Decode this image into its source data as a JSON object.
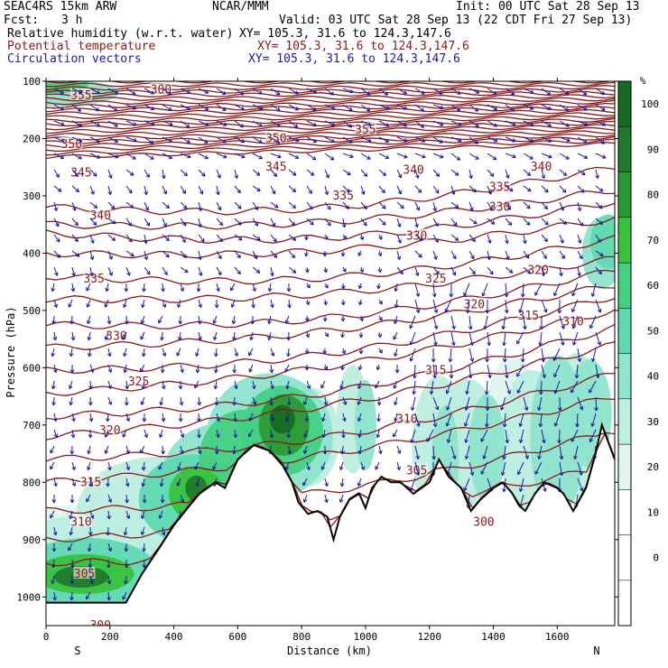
{
  "header": {
    "model": "SEAC4RS 15km ARW",
    "org": "NCAR/MMM",
    "init": "Init: 00 UTC Sat 28 Sep 13",
    "fcst_label": "Fcst:",
    "fcst_value": "3 h",
    "valid": "Valid: 03 UTC Sat 28 Sep 13 (22 CDT Fri 27 Sep 13)",
    "field1_name": "Relative humidity (w.r.t. water)",
    "field1_xy": "XY= 105.3, 31.6 to 124.3,147.6",
    "field2_name": "Potential temperature",
    "field2_xy": "XY= 105.3, 31.6 to 124.3,147.6",
    "field3_name": "Circulation vectors",
    "field3_xy": "XY= 105.3, 31.6 to 124.3,147.6"
  },
  "colors": {
    "theta": "#8b1a1a",
    "vector": "#1a1a9c",
    "terrain": "#000000"
  },
  "chart_data": {
    "type": "heatmap",
    "xlabel": "Distance (km)",
    "ylabel": "Pressure (hPa)",
    "xlim": [
      0,
      1780
    ],
    "ylim": [
      1050,
      100
    ],
    "x_ticks": [
      "0",
      "200",
      "400",
      "600",
      "800",
      "1000",
      "1200",
      "1400",
      "1600"
    ],
    "y_ticks": [
      "100",
      "200",
      "300",
      "400",
      "500",
      "600",
      "700",
      "800",
      "900",
      "1000"
    ],
    "x_end_labels": {
      "left": "S",
      "right": "N"
    },
    "colorbar": {
      "unit": "%",
      "levels": [
        "0",
        "10",
        "20",
        "30",
        "40",
        "50",
        "60",
        "70",
        "80",
        "90",
        "100"
      ],
      "colors": [
        "#ffffff",
        "#ffffff",
        "#ffffff",
        "#e0f6ef",
        "#bdeee0",
        "#8ee4cd",
        "#5fd9b2",
        "#44d083",
        "#39c23d",
        "#2a9a35",
        "#1f7a2c",
        "#166a22"
      ]
    },
    "theta_labels": [
      {
        "text": "355",
        "x": 110,
        "p": 125
      },
      {
        "text": "300",
        "x": 360,
        "p": 115
      },
      {
        "text": "350",
        "x": 80,
        "p": 210
      },
      {
        "text": "350",
        "x": 720,
        "p": 200
      },
      {
        "text": "355",
        "x": 1000,
        "p": 185
      },
      {
        "text": "345",
        "x": 110,
        "p": 260
      },
      {
        "text": "345",
        "x": 720,
        "p": 250
      },
      {
        "text": "340",
        "x": 1150,
        "p": 255
      },
      {
        "text": "340",
        "x": 1550,
        "p": 250
      },
      {
        "text": "340",
        "x": 170,
        "p": 335
      },
      {
        "text": "335",
        "x": 930,
        "p": 300
      },
      {
        "text": "335",
        "x": 1420,
        "p": 285
      },
      {
        "text": "330",
        "x": 1420,
        "p": 320
      },
      {
        "text": "330",
        "x": 1160,
        "p": 370
      },
      {
        "text": "335",
        "x": 150,
        "p": 445
      },
      {
        "text": "325",
        "x": 1220,
        "p": 445
      },
      {
        "text": "320",
        "x": 1540,
        "p": 430
      },
      {
        "text": "330",
        "x": 220,
        "p": 545
      },
      {
        "text": "320",
        "x": 1340,
        "p": 490
      },
      {
        "text": "315",
        "x": 1510,
        "p": 510
      },
      {
        "text": "310",
        "x": 1650,
        "p": 520
      },
      {
        "text": "325",
        "x": 290,
        "p": 625
      },
      {
        "text": "315",
        "x": 1220,
        "p": 605
      },
      {
        "text": "320",
        "x": 200,
        "p": 710
      },
      {
        "text": "310",
        "x": 1130,
        "p": 690
      },
      {
        "text": "315",
        "x": 140,
        "p": 800
      },
      {
        "text": "305",
        "x": 1160,
        "p": 780
      },
      {
        "text": "310",
        "x": 110,
        "p": 870
      },
      {
        "text": "300",
        "x": 1370,
        "p": 870
      },
      {
        "text": "305",
        "x": 120,
        "p": 960
      },
      {
        "text": "300",
        "x": 170,
        "p": 1050
      }
    ]
  }
}
